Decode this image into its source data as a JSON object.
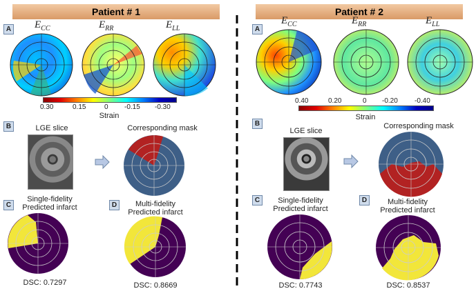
{
  "patient1": {
    "title": "Patient # 1",
    "panel_a": "A",
    "panel_b": "B",
    "panel_c": "C",
    "panel_d": "D",
    "ticks": [
      "0.30",
      "0.15",
      "0",
      "-0.15",
      "-0.30"
    ],
    "strain_label": "Strain",
    "lge_caption": "LGE slice",
    "mask_caption": "Corresponding mask",
    "single_caption_1": "Single-fidelity",
    "single_caption_2": "Predicted infarct",
    "multi_caption_1": "Multi-fidelity",
    "multi_caption_2": "Predicted infarct",
    "dsc_single": "DSC: 0.7297",
    "dsc_multi": "DSC: 0.8669"
  },
  "patient2": {
    "title": "Patient # 2",
    "panel_a": "A",
    "panel_b": "B",
    "panel_c": "C",
    "panel_d": "D",
    "ticks": [
      "0.40",
      "0.20",
      "0",
      "-0.20",
      "-0.40"
    ],
    "strain_label": "Strain",
    "lge_caption": "LGE slice",
    "mask_caption": "Corresponding mask",
    "single_caption_1": "Single-fidelity",
    "single_caption_2": "Predicted infarct",
    "multi_caption_1": "Multi-fidelity",
    "multi_caption_2": "Predicted infarct",
    "dsc_single": "DSC: 0.7743",
    "dsc_multi": "DSC: 0.8537"
  },
  "strain_components": {
    "e_cc": "E",
    "e_cc_sub": "CC",
    "e_rr": "E",
    "e_rr_sub": "RR",
    "e_ll": "E",
    "e_ll_sub": "LL"
  },
  "colors": {
    "mask_background": "#3e5f87",
    "mask_infarct": "#b22222",
    "prediction_background": "#440154",
    "prediction_infarct": "#f2e63a"
  }
}
